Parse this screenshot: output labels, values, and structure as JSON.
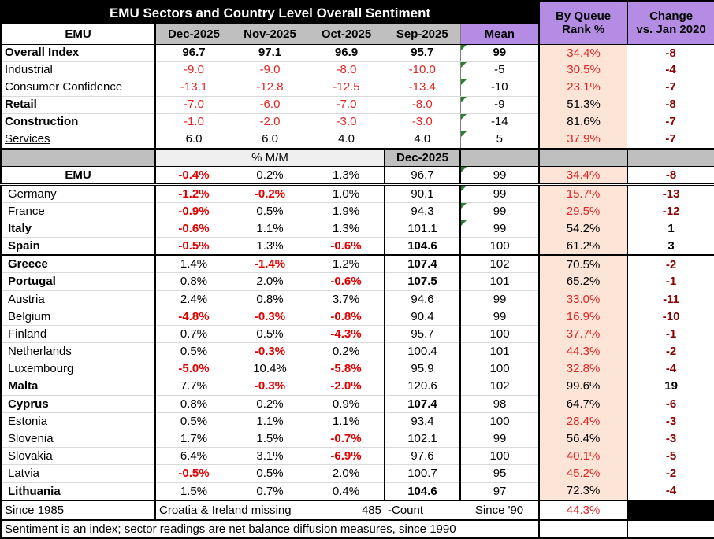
{
  "title": "EMU Sectors and Country Level Overall Sentiment",
  "colors": {
    "header_purple": "#b48ce4",
    "header_gray": "#bfbfbf",
    "subheader_gray": "#efefef",
    "rank_column_peach": "#fce4d6",
    "negative_red": "#e02525",
    "change_dark_red": "#8b0000",
    "flag_green": "#2e7d32",
    "title_bg": "#000000"
  },
  "header": {
    "row_label": "EMU",
    "months": [
      "Dec-2025",
      "Nov-2025",
      "Oct-2025",
      "Sep-2025"
    ],
    "mean": "Mean",
    "queue": [
      "By Queue",
      "Rank %"
    ],
    "change": [
      "Change",
      "vs. Jan 2020"
    ]
  },
  "sectors": [
    {
      "label": "Overall Index",
      "bold": true,
      "underline": false,
      "values": [
        "96.7",
        "97.1",
        "96.9",
        "95.7"
      ],
      "values_bold": true,
      "mean": "99",
      "mean_bold": true,
      "flag": true,
      "rank": "34.4%",
      "change": "-8",
      "sep": ""
    },
    {
      "label": "Industrial",
      "bold": false,
      "underline": false,
      "values": [
        "-9.0",
        "-9.0",
        "-8.0",
        "-10.0"
      ],
      "values_bold": false,
      "mean": "-5",
      "mean_bold": false,
      "flag": true,
      "rank": "30.5%",
      "change": "-4",
      "sep": ""
    },
    {
      "label": "Consumer Confidence",
      "bold": false,
      "underline": false,
      "values": [
        "-13.1",
        "-12.8",
        "-12.5",
        "-13.4"
      ],
      "values_bold": false,
      "mean": "-10",
      "mean_bold": false,
      "flag": true,
      "rank": "23.1%",
      "change": "-7",
      "sep": ""
    },
    {
      "label": "Retail",
      "bold": true,
      "underline": false,
      "values": [
        "-7.0",
        "-6.0",
        "-7.0",
        "-8.0"
      ],
      "values_bold": false,
      "mean": "-9",
      "mean_bold": false,
      "flag": true,
      "rank": "51.3%",
      "change": "-8",
      "sep": ""
    },
    {
      "label": "Construction",
      "bold": true,
      "underline": false,
      "values": [
        "-1.0",
        "-2.0",
        "-3.0",
        "-3.0"
      ],
      "values_bold": false,
      "mean": "-14",
      "mean_bold": false,
      "flag": true,
      "rank": "81.6%",
      "change": "-7",
      "sep": ""
    },
    {
      "label": "Services",
      "bold": false,
      "underline": true,
      "values": [
        "6.0",
        "6.0",
        "4.0",
        "4.0"
      ],
      "values_bold": false,
      "mean": "5",
      "mean_bold": false,
      "flag": true,
      "rank": "37.9%",
      "change": "-7",
      "sep": "thick"
    }
  ],
  "mid_header": {
    "mm_label": "% M/M",
    "index_label": "Dec-2025"
  },
  "countries": [
    {
      "label": "EMU",
      "bold": true,
      "center": true,
      "mm": [
        "-0.4%",
        "0.2%",
        "1.3%"
      ],
      "index": "96.7",
      "index_bold": false,
      "mean": "99",
      "flag": true,
      "rank": "34.4%",
      "change": "-8",
      "sep": "double"
    },
    {
      "label": "Germany",
      "bold": false,
      "center": false,
      "mm": [
        "-1.2%",
        "-0.2%",
        "1.0%"
      ],
      "index": "90.1",
      "index_bold": false,
      "mean": "99",
      "flag": true,
      "rank": "15.7%",
      "change": "-13",
      "sep": ""
    },
    {
      "label": "France",
      "bold": false,
      "center": false,
      "mm": [
        "-0.9%",
        "0.5%",
        "1.9%"
      ],
      "index": "94.3",
      "index_bold": false,
      "mean": "99",
      "flag": true,
      "rank": "29.5%",
      "change": "-12",
      "sep": ""
    },
    {
      "label": "Italy",
      "bold": true,
      "center": false,
      "mm": [
        "-0.6%",
        "1.1%",
        "1.3%"
      ],
      "index": "101.1",
      "index_bold": false,
      "mean": "99",
      "flag": true,
      "rank": "54.2%",
      "change": "1",
      "sep": ""
    },
    {
      "label": "Spain",
      "bold": true,
      "center": false,
      "mm": [
        "-0.5%",
        "1.3%",
        "-0.6%"
      ],
      "index": "104.6",
      "index_bold": true,
      "mean": "100",
      "flag": false,
      "rank": "61.2%",
      "change": "3",
      "sep": "thick"
    },
    {
      "label": "Greece",
      "bold": true,
      "center": false,
      "mm": [
        "1.4%",
        "-1.4%",
        "1.2%"
      ],
      "index": "107.4",
      "index_bold": true,
      "mean": "102",
      "flag": false,
      "rank": "70.5%",
      "change": "-2",
      "sep": ""
    },
    {
      "label": "Portugal",
      "bold": true,
      "center": false,
      "mm": [
        "0.8%",
        "2.0%",
        "-0.6%"
      ],
      "index": "107.5",
      "index_bold": true,
      "mean": "101",
      "flag": false,
      "rank": "65.2%",
      "change": "-1",
      "sep": ""
    },
    {
      "label": "Austria",
      "bold": false,
      "center": false,
      "mm": [
        "2.4%",
        "0.8%",
        "3.7%"
      ],
      "index": "94.6",
      "index_bold": false,
      "mean": "99",
      "flag": false,
      "rank": "33.0%",
      "change": "-11",
      "sep": ""
    },
    {
      "label": "Belgium",
      "bold": false,
      "center": false,
      "mm": [
        "-4.8%",
        "-0.3%",
        "-0.8%"
      ],
      "index": "90.4",
      "index_bold": false,
      "mean": "99",
      "flag": false,
      "rank": "16.9%",
      "change": "-10",
      "sep": ""
    },
    {
      "label": "Finland",
      "bold": false,
      "center": false,
      "mm": [
        "0.7%",
        "0.5%",
        "-4.3%"
      ],
      "index": "95.7",
      "index_bold": false,
      "mean": "100",
      "flag": false,
      "rank": "37.7%",
      "change": "-1",
      "sep": ""
    },
    {
      "label": "Netherlands",
      "bold": false,
      "center": false,
      "mm": [
        "0.5%",
        "-0.3%",
        "0.2%"
      ],
      "index": "100.4",
      "index_bold": false,
      "mean": "101",
      "flag": false,
      "rank": "44.3%",
      "change": "-2",
      "sep": ""
    },
    {
      "label": "Luxembourg",
      "bold": false,
      "center": false,
      "mm": [
        "-5.0%",
        "10.4%",
        "-5.8%"
      ],
      "index": "95.9",
      "index_bold": false,
      "mean": "100",
      "flag": false,
      "rank": "32.8%",
      "change": "-4",
      "sep": ""
    },
    {
      "label": "Malta",
      "bold": true,
      "center": false,
      "mm": [
        "7.7%",
        "-0.3%",
        "-2.0%"
      ],
      "index": "120.6",
      "index_bold": false,
      "mean": "102",
      "flag": false,
      "rank": "99.6%",
      "change": "19",
      "sep": ""
    },
    {
      "label": "Cyprus",
      "bold": true,
      "center": false,
      "mm": [
        "0.8%",
        "0.2%",
        "0.9%"
      ],
      "index": "107.4",
      "index_bold": true,
      "mean": "98",
      "flag": false,
      "rank": "64.7%",
      "change": "-6",
      "sep": ""
    },
    {
      "label": "Estonia",
      "bold": false,
      "center": false,
      "mm": [
        "0.5%",
        "1.1%",
        "1.1%"
      ],
      "index": "93.4",
      "index_bold": false,
      "mean": "100",
      "flag": false,
      "rank": "28.4%",
      "change": "-3",
      "sep": ""
    },
    {
      "label": "Slovenia",
      "bold": false,
      "center": false,
      "mm": [
        "1.7%",
        "1.5%",
        "-0.7%"
      ],
      "index": "102.1",
      "index_bold": false,
      "mean": "99",
      "flag": false,
      "rank": "56.4%",
      "change": "-3",
      "sep": ""
    },
    {
      "label": "Slovakia",
      "bold": false,
      "center": false,
      "mm": [
        "6.4%",
        "3.1%",
        "-6.9%"
      ],
      "index": "97.6",
      "index_bold": false,
      "mean": "100",
      "flag": false,
      "rank": "40.1%",
      "change": "-5",
      "sep": ""
    },
    {
      "label": "Latvia",
      "bold": false,
      "center": false,
      "mm": [
        "-0.5%",
        "0.5%",
        "2.0%"
      ],
      "index": "100.7",
      "index_bold": false,
      "mean": "95",
      "flag": false,
      "rank": "45.2%",
      "change": "-2",
      "sep": ""
    },
    {
      "label": "Lithuania",
      "bold": true,
      "center": false,
      "mm": [
        "1.5%",
        "0.7%",
        "0.4%"
      ],
      "index": "104.6",
      "index_bold": true,
      "mean": "97",
      "flag": false,
      "rank": "72.3%",
      "change": "-4",
      "sep": "thick"
    }
  ],
  "footer": {
    "left": "Since 1985",
    "middle": "Croatia & Ireland missing",
    "count": "485",
    "count_label": "-Count",
    "since": "Since '90",
    "rank": "44.3%"
  },
  "note": "Sentiment is an index; sector readings are net balance diffusion measures, since 1990"
}
